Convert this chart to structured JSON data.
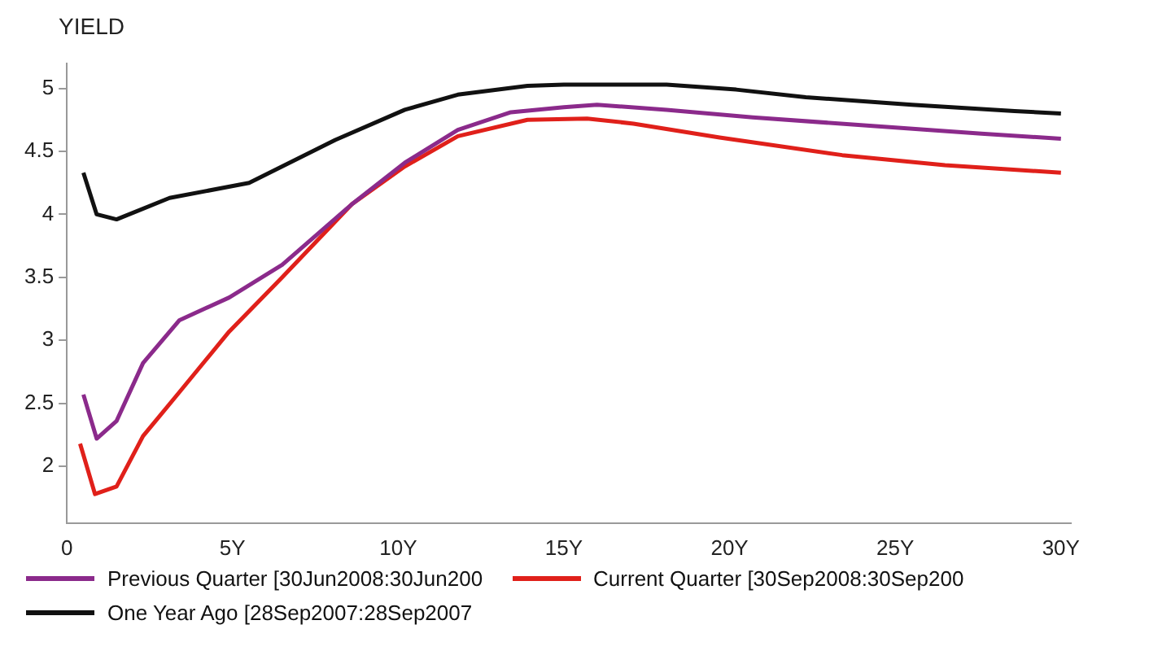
{
  "chart_data": {
    "type": "line",
    "ylabel": "YIELD",
    "xlim": [
      0,
      30.3
    ],
    "ylim": [
      1.55,
      5.2
    ],
    "xticks": [
      {
        "value": 0,
        "label": "0"
      },
      {
        "value": 5,
        "label": "5Y"
      },
      {
        "value": 10,
        "label": "10Y"
      },
      {
        "value": 15,
        "label": "15Y"
      },
      {
        "value": 20,
        "label": "20Y"
      },
      {
        "value": 25,
        "label": "25Y"
      },
      {
        "value": 30,
        "label": "30Y"
      }
    ],
    "yticks": [
      2,
      2.5,
      3,
      3.5,
      4,
      4.5,
      5
    ],
    "grid": false,
    "legend": "bottom left",
    "marker": "none",
    "line_style": "solid",
    "series": [
      {
        "name": "Previous Quarter [30Jun2008:30Jun200",
        "color": "#8b2a8b",
        "x": [
          0.5,
          0.9,
          1.5,
          2.3,
          3.4,
          4.9,
          6.5,
          8.6,
          10.2,
          11.8,
          13.4,
          15,
          16,
          18.1,
          20.7,
          24.4,
          27.6,
          30
        ],
        "values": [
          2.57,
          2.22,
          2.36,
          2.82,
          3.16,
          3.34,
          3.6,
          4.08,
          4.41,
          4.67,
          4.81,
          4.85,
          4.87,
          4.83,
          4.77,
          4.7,
          4.64,
          4.6
        ]
      },
      {
        "name": "Current Quarter [30Sep2008:30Sep200",
        "color": "#e0201a",
        "x": [
          0.4,
          0.85,
          1.5,
          2.3,
          3.4,
          4.9,
          6.5,
          8.6,
          10.2,
          11.8,
          13.9,
          15.7,
          17.1,
          19.7,
          23.4,
          26.5,
          30
        ],
        "values": [
          2.18,
          1.78,
          1.84,
          2.24,
          2.59,
          3.07,
          3.5,
          4.08,
          4.38,
          4.62,
          4.75,
          4.76,
          4.72,
          4.61,
          4.47,
          4.39,
          4.33
        ]
      },
      {
        "name": "One Year Ago [28Sep2007:28Sep2007",
        "color": "#111111",
        "x": [
          0.5,
          0.9,
          1.5,
          3.1,
          5.5,
          8.1,
          10.2,
          11.8,
          13.9,
          15,
          18.1,
          20.2,
          22.3,
          25.5,
          28.6,
          30
        ],
        "values": [
          4.33,
          4.0,
          3.96,
          4.13,
          4.25,
          4.59,
          4.83,
          4.95,
          5.02,
          5.03,
          5.03,
          4.99,
          4.93,
          4.87,
          4.82,
          4.8
        ]
      }
    ]
  }
}
